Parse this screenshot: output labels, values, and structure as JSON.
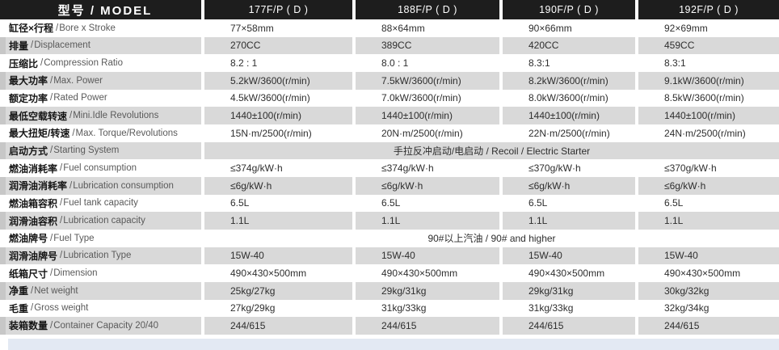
{
  "meta": {
    "separator": " / "
  },
  "header": {
    "model_label": "型号 / MODEL",
    "models": [
      "177F/P ( D )",
      "188F/P ( D )",
      "190F/P ( D )",
      "192F/P ( D )"
    ]
  },
  "rows": [
    {
      "zh": "缸径×行程",
      "en": "Bore x Stroke",
      "values": [
        "77×58mm",
        "88×64mm",
        "90×66mm",
        "92×69mm"
      ]
    },
    {
      "zh": "排量",
      "en": "Displacement",
      "values": [
        "270CC",
        "389CC",
        "420CC",
        "459CC"
      ]
    },
    {
      "zh": "压缩比",
      "en": "Compression Ratio",
      "values": [
        "8.2 : 1",
        "8.0 : 1",
        "8.3:1",
        "8.3:1"
      ]
    },
    {
      "zh": "最大功率",
      "en": "Max. Power",
      "values": [
        "5.2kW/3600(r/min)",
        "7.5kW/3600(r/min)",
        "8.2kW/3600(r/min)",
        "9.1kW/3600(r/min)"
      ]
    },
    {
      "zh": "额定功率",
      "en": "Rated Power",
      "values": [
        "4.5kW/3600(r/min)",
        "7.0kW/3600(r/min)",
        "8.0kW/3600(r/min)",
        "8.5kW/3600(r/min)"
      ]
    },
    {
      "zh": "最低空载转速",
      "en": "Mini.Idle Revolutions",
      "values": [
        "1440±100(r/min)",
        "1440±100(r/min)",
        "1440±100(r/min)",
        "1440±100(r/min)"
      ]
    },
    {
      "zh": "最大扭矩/转速",
      "en": "Max. Torque/Revolutions",
      "values": [
        "15N·m/2500(r/min)",
        "20N·m/2500(r/min)",
        "22N·m/2500(r/min)",
        "24N·m/2500(r/min)"
      ]
    },
    {
      "zh": "启动方式",
      "en": "Starting System",
      "span": "手拉反冲启动/电启动 / Recoil / Electric Starter"
    },
    {
      "zh": "燃油消耗率",
      "en": "Fuel consumption",
      "values": [
        "≤374g/kW·h",
        "≤374g/kW·h",
        "≤370g/kW·h",
        "≤370g/kW·h"
      ]
    },
    {
      "zh": "润滑油消耗率",
      "en": "Lubrication consumption",
      "values": [
        "≤6g/kW·h",
        "≤6g/kW·h",
        "≤6g/kW·h",
        "≤6g/kW·h"
      ]
    },
    {
      "zh": "燃油箱容积",
      "en": "Fuel tank capacity",
      "values": [
        "6.5L",
        "6.5L",
        "6.5L",
        "6.5L"
      ]
    },
    {
      "zh": "润滑油容积",
      "en": "Lubrication capacity",
      "values": [
        "1.1L",
        "1.1L",
        "1.1L",
        "1.1L"
      ]
    },
    {
      "zh": "燃油牌号",
      "en": "Fuel Type",
      "span": "90#以上汽油 / 90# and higher"
    },
    {
      "zh": "润滑油牌号",
      "en": "Lubrication Type",
      "values": [
        "15W-40",
        "15W-40",
        "15W-40",
        "15W-40"
      ]
    },
    {
      "zh": "纸箱尺寸",
      "en": "Dimension",
      "values": [
        "490×430×500mm",
        "490×430×500mm",
        "490×430×500mm",
        "490×430×500mm"
      ]
    },
    {
      "zh": "净重",
      "en": "Net weight",
      "values": [
        "25kg/27kg",
        "29kg/31kg",
        "29kg/31kg",
        "30kg/32kg"
      ]
    },
    {
      "zh": "毛重",
      "en": "Gross weight",
      "values": [
        "27kg/29kg",
        "31kg/33kg",
        "31kg/33kg",
        "32kg/34kg"
      ]
    },
    {
      "zh": "装箱数量",
      "en": "Container Capacity 20/40",
      "values": [
        "244/615",
        "244/615",
        "244/615",
        "244/615"
      ]
    }
  ],
  "colors": {
    "header_bg": "#1d1d1d",
    "header_text": "#ffffff",
    "row_alt_bg": "#d9d9d9",
    "footer_band": "#e3e9f3"
  }
}
